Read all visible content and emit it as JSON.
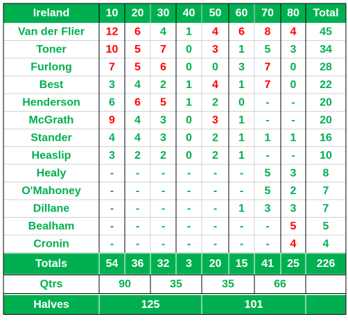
{
  "header": [
    "Ireland",
    "10",
    "20",
    "30",
    "40",
    "50",
    "60",
    "70",
    "80",
    "Total"
  ],
  "rows": [
    {
      "name": "Van der Flier",
      "cells": [
        12,
        6,
        4,
        1,
        4,
        6,
        8,
        4
      ],
      "total": 45,
      "red": [
        0,
        1,
        4,
        5,
        6,
        7
      ]
    },
    {
      "name": "Toner",
      "cells": [
        10,
        5,
        7,
        0,
        3,
        1,
        5,
        3
      ],
      "total": 34,
      "red": [
        0,
        1,
        2,
        4
      ]
    },
    {
      "name": "Furlong",
      "cells": [
        7,
        5,
        6,
        0,
        0,
        3,
        7,
        0
      ],
      "total": 28,
      "red": [
        0,
        1,
        2,
        6
      ]
    },
    {
      "name": "Best",
      "cells": [
        3,
        4,
        2,
        1,
        4,
        1,
        7,
        0
      ],
      "total": 22,
      "red": [
        4,
        6
      ]
    },
    {
      "name": "Henderson",
      "cells": [
        6,
        6,
        5,
        1,
        2,
        0,
        "-",
        "-"
      ],
      "total": 20,
      "red": [
        1,
        2
      ]
    },
    {
      "name": "McGrath",
      "cells": [
        9,
        4,
        3,
        0,
        3,
        1,
        "-",
        "-"
      ],
      "total": 20,
      "red": [
        0,
        4
      ]
    },
    {
      "name": "Stander",
      "cells": [
        4,
        4,
        3,
        0,
        2,
        1,
        1,
        1
      ],
      "total": 16,
      "red": []
    },
    {
      "name": "Heaslip",
      "cells": [
        3,
        2,
        2,
        0,
        2,
        1,
        "-",
        "-"
      ],
      "total": 10,
      "red": []
    },
    {
      "name": "Healy",
      "cells": [
        "-",
        "-",
        "-",
        "-",
        "-",
        "-",
        5,
        3
      ],
      "total": 8,
      "red": []
    },
    {
      "name": "O'Mahoney",
      "cells": [
        "-",
        "-",
        "-",
        "-",
        "-",
        "-",
        5,
        2
      ],
      "total": 7,
      "red": []
    },
    {
      "name": "Dillane",
      "cells": [
        "-",
        "-",
        "-",
        "-",
        "-",
        1,
        3,
        3
      ],
      "total": 7,
      "red": []
    },
    {
      "name": "Bealham",
      "cells": [
        "-",
        "-",
        "-",
        "-",
        "-",
        "-",
        "-",
        5
      ],
      "total": 5,
      "red": [
        7
      ]
    },
    {
      "name": "Cronin",
      "cells": [
        "-",
        "-",
        "-",
        "-",
        "-",
        "-",
        "-",
        4
      ],
      "total": 4,
      "red": [
        7
      ]
    }
  ],
  "totals": {
    "label": "Totals",
    "cells": [
      54,
      36,
      32,
      3,
      20,
      15,
      41,
      25
    ],
    "total": 226
  },
  "qtrs": {
    "label": "Qtrs",
    "values": [
      90,
      35,
      35,
      66
    ]
  },
  "halves": {
    "label": "Halves",
    "values": [
      125,
      101
    ]
  },
  "colors": {
    "green": "#00b050",
    "red": "#ff0000"
  }
}
